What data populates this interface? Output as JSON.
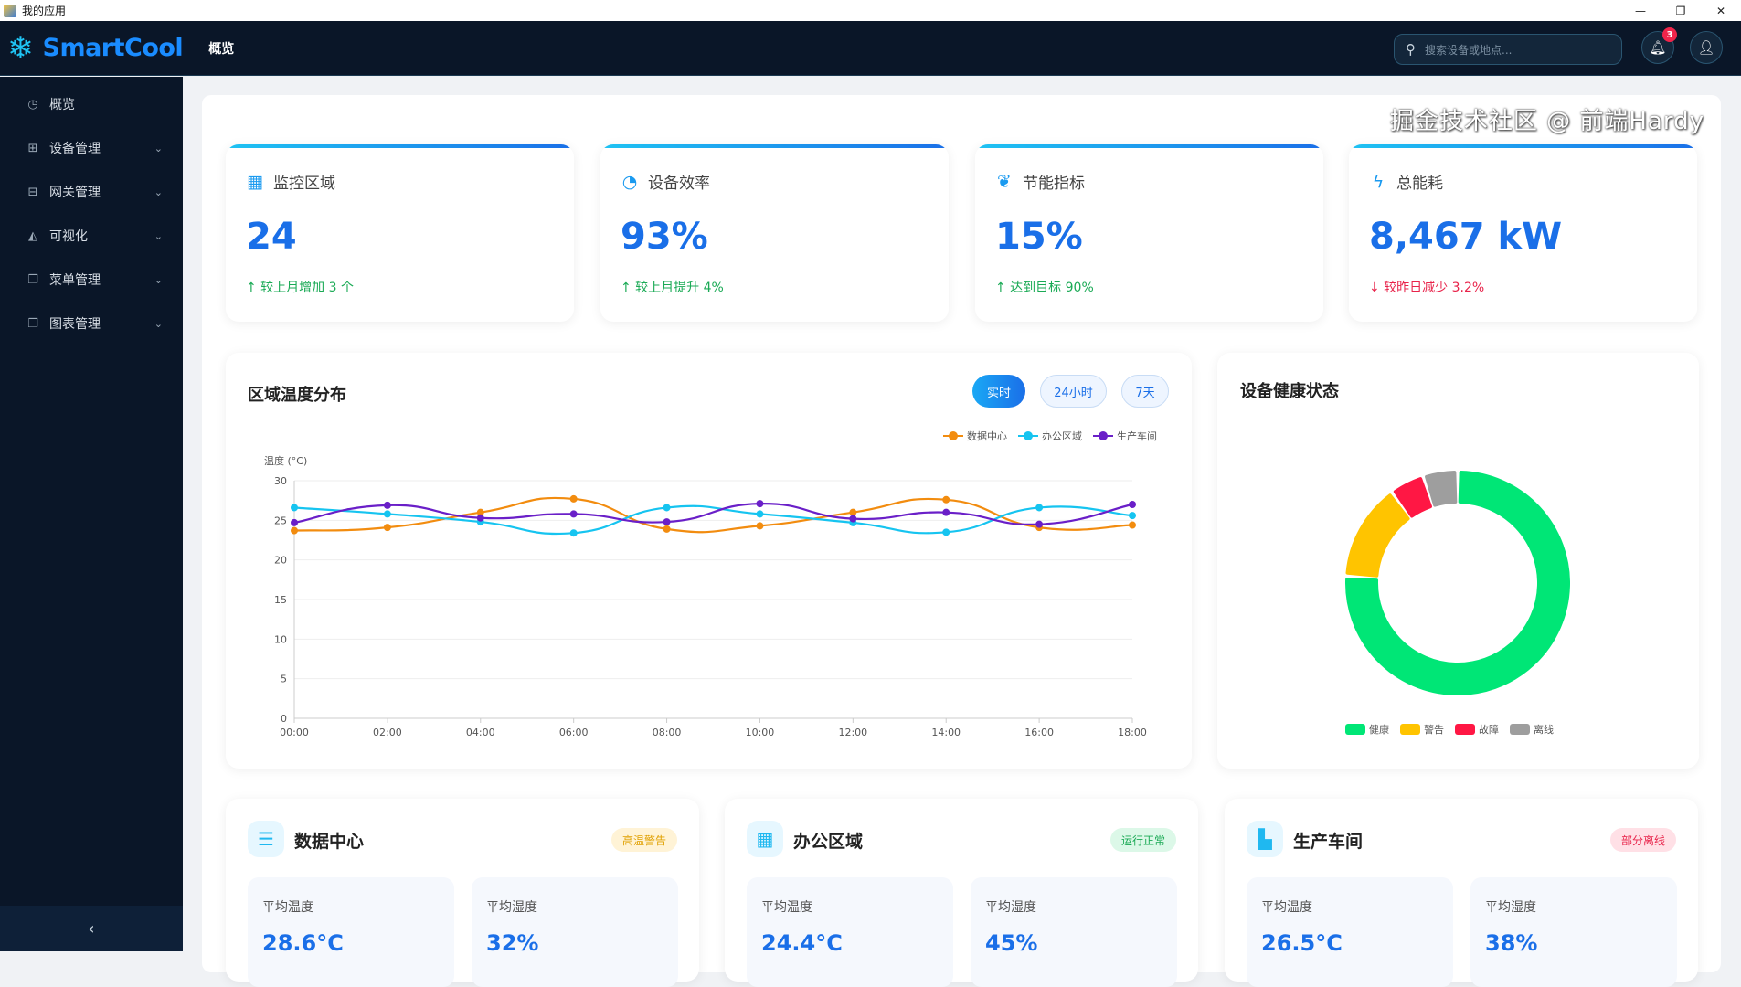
{
  "window": {
    "title": "我的应用",
    "controls": [
      "—",
      "❐",
      "✕"
    ]
  },
  "header": {
    "brand": "SmartCool",
    "nav": "概览",
    "search_placeholder": "搜索设备或地点...",
    "notification_count": "3"
  },
  "sidebar": {
    "items": [
      {
        "label": "概览",
        "icon": "pie-chart-icon",
        "glyph": "◷",
        "expandable": false
      },
      {
        "label": "设备管理",
        "icon": "grid-icon",
        "glyph": "⊞",
        "expandable": true
      },
      {
        "label": "网关管理",
        "icon": "gateway-icon",
        "glyph": "⊟",
        "expandable": true
      },
      {
        "label": "可视化",
        "icon": "area-chart-icon",
        "glyph": "◭",
        "expandable": true
      },
      {
        "label": "菜单管理",
        "icon": "copy-icon",
        "glyph": "❐",
        "expandable": true
      },
      {
        "label": "图表管理",
        "icon": "copy-icon",
        "glyph": "❐",
        "expandable": true
      }
    ],
    "collapse_glyph": "‹"
  },
  "kpis": [
    {
      "label": "监控区域",
      "icon": "building-icon",
      "glyph": "▦",
      "value": "24",
      "trend": "↑ 较上月增加 3 个",
      "direction": "up"
    },
    {
      "label": "设备效率",
      "icon": "gauge-icon",
      "glyph": "◔",
      "value": "93%",
      "trend": "↑ 较上月提升 4%",
      "direction": "up"
    },
    {
      "label": "节能指标",
      "icon": "leaf-icon",
      "glyph": "❦",
      "value": "15%",
      "trend": "↑ 达到目标 90%",
      "direction": "up"
    },
    {
      "label": "总能耗",
      "icon": "bolt-icon",
      "glyph": "ϟ",
      "value": "8,467 kW",
      "trend": "↓ 较昨日减少 3.2%",
      "direction": "down"
    }
  ],
  "temp_panel": {
    "title": "区域温度分布",
    "ranges": [
      "实时",
      "24小时",
      "7天"
    ],
    "active_range": "实时"
  },
  "health_panel": {
    "title": "设备健康状态"
  },
  "chart_data": [
    {
      "type": "line",
      "smooth": true,
      "ylabel": "温度 (°C)",
      "ylim": [
        0,
        30
      ],
      "yticks": [
        "0",
        "5",
        "10",
        "15",
        "20",
        "25",
        "30"
      ],
      "categories": [
        "00:00",
        "02:00",
        "04:00",
        "06:00",
        "08:00",
        "10:00",
        "12:00",
        "14:00",
        "16:00",
        "18:00"
      ],
      "legend": "top-right",
      "grid": true,
      "series": [
        {
          "name": "数据中心",
          "color": "#f28c0f",
          "values": [
            23.7,
            24.1,
            26.0,
            27.7,
            23.9,
            24.3,
            26.0,
            27.6,
            24.1,
            24.4
          ]
        },
        {
          "name": "办公区域",
          "color": "#16c4f0",
          "values": [
            26.6,
            25.8,
            24.8,
            23.4,
            26.6,
            25.8,
            24.7,
            23.5,
            26.6,
            25.6
          ]
        },
        {
          "name": "生产车间",
          "color": "#6a1fc8",
          "values": [
            24.7,
            26.9,
            25.3,
            25.8,
            24.8,
            27.1,
            25.2,
            26.0,
            24.5,
            27.0
          ]
        }
      ]
    },
    {
      "type": "pie",
      "donut": true,
      "legend": "bottom",
      "slices": [
        {
          "name": "健康",
          "color": "#00e676",
          "value": 76
        },
        {
          "name": "警告",
          "color": "#ffc400",
          "value": 14
        },
        {
          "name": "故障",
          "color": "#ff1744",
          "value": 5
        },
        {
          "name": "离线",
          "color": "#9e9e9e",
          "value": 5
        }
      ]
    }
  ],
  "zones": [
    {
      "name": "数据中心",
      "icon": "server-icon",
      "glyph": "☰",
      "status": "高温警告",
      "status_bg": "#fff3d6",
      "status_fg": "#e0a000",
      "metrics": [
        {
          "label": "平均温度",
          "value": "28.6°C"
        },
        {
          "label": "平均湿度",
          "value": "32%"
        }
      ]
    },
    {
      "name": "办公区域",
      "icon": "building-icon",
      "glyph": "▦",
      "status": "运行正常",
      "status_bg": "#dcf8e8",
      "status_fg": "#1aaa55",
      "metrics": [
        {
          "label": "平均温度",
          "value": "24.4°C"
        },
        {
          "label": "平均湿度",
          "value": "45%"
        }
      ]
    },
    {
      "name": "生产车间",
      "icon": "factory-icon",
      "glyph": "▙",
      "status": "部分离线",
      "status_bg": "#ffe0e6",
      "status_fg": "#e8234a",
      "metrics": [
        {
          "label": "平均温度",
          "value": "26.5°C"
        },
        {
          "label": "平均湿度",
          "value": "38%"
        }
      ]
    }
  ],
  "watermark": "掘金技术社区 @ 前端Hardy"
}
